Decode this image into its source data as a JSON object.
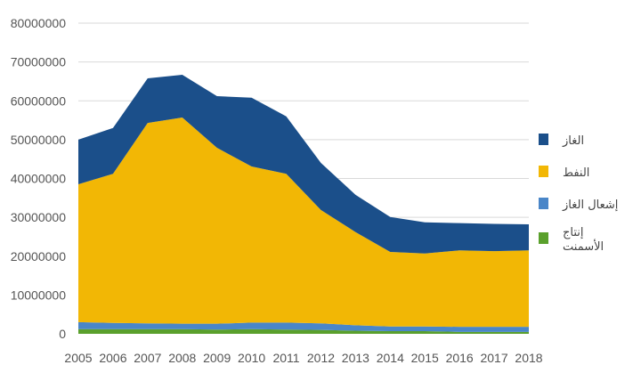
{
  "chart_data": {
    "type": "area",
    "stacked": true,
    "title": "",
    "xlabel": "",
    "ylabel": "",
    "x": [
      "2005",
      "2006",
      "2007",
      "2008",
      "2009",
      "2010",
      "2011",
      "2012",
      "2013",
      "2014",
      "2015",
      "2016",
      "2017",
      "2018"
    ],
    "ylim": [
      0,
      80000000
    ],
    "yticks": [
      "0",
      "10000000",
      "20000000",
      "30000000",
      "40000000",
      "50000000",
      "60000000",
      "70000000",
      "80000000"
    ],
    "grid": true,
    "legend_position": "right",
    "series": [
      {
        "name": "إنتاج الأسمنت",
        "color": "#5aa02c",
        "values": [
          1200000,
          1200000,
          1200000,
          1200000,
          1100000,
          1200000,
          1100000,
          1000000,
          800000,
          700000,
          700000,
          500000,
          500000,
          500000
        ]
      },
      {
        "name": "إشعال الغاز",
        "color": "#4a86c8",
        "values": [
          1800000,
          1600000,
          1500000,
          1400000,
          1500000,
          1700000,
          1800000,
          1700000,
          1400000,
          1200000,
          1200000,
          1300000,
          1300000,
          1300000
        ]
      },
      {
        "name": "النفط",
        "color": "#f2b705",
        "values": [
          35500000,
          38400000,
          51600000,
          53100000,
          45300000,
          40200000,
          38300000,
          29200000,
          24000000,
          19200000,
          18800000,
          19700000,
          19500000,
          19700000
        ]
      },
      {
        "name": "الغاز",
        "color": "#1b4f8a",
        "values": [
          11500000,
          11800000,
          11500000,
          11000000,
          13300000,
          17700000,
          14800000,
          12100000,
          9600000,
          9000000,
          8000000,
          7000000,
          7000000,
          6700000
        ]
      }
    ],
    "legend_order": [
      "الغاز",
      "النفط",
      "إشعال الغاز",
      "إنتاج الأسمنت"
    ],
    "legend_lines": {
      "الغاز": [
        "الغاز"
      ],
      "النفط": [
        "النفط"
      ],
      "إشعال الغاز": [
        "إشعال الغاز"
      ],
      "إنتاج الأسمنت": [
        "إنتاج",
        "الأسمنت"
      ]
    }
  }
}
